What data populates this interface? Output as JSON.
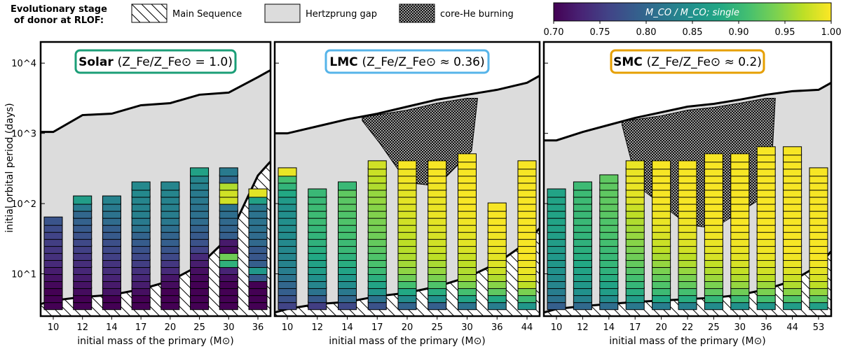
{
  "legend": {
    "title_line1": "Evolutionary stage",
    "title_line2": "of donor at RLOF:",
    "main_sequence": "Main Sequence",
    "hertzsprung_gap": "Hertzprung gap",
    "core_he": "core-He burning"
  },
  "colorbar": {
    "label": "M_CO / M_CO; single",
    "min": 0.7,
    "max": 1.0,
    "ticks": [
      "0.70",
      "0.75",
      "0.80",
      "0.85",
      "0.90",
      "0.95",
      "1.00"
    ],
    "colormap": "viridis"
  },
  "axes": {
    "ylabel": "initial orbital period (days)",
    "xlabel": "initial mass of the primary (M⊙)",
    "yticks": [
      "10^1",
      "10^2",
      "10^3",
      "10^4"
    ],
    "ylim_days": [
      2.5,
      20000
    ]
  },
  "colors": {
    "solar_box": "#1b9e77",
    "lmc_box": "#56b4e9",
    "smc_box": "#e69f00",
    "hertzsprung_gap_fill": "#dcdcdc",
    "main_sequence_hatch": "#000000"
  },
  "chart_data": [
    {
      "type": "scatter",
      "panel": "Solar",
      "title_bold": "Solar",
      "title_rest": "(Z_Fe/Z_Fe⊙ = 1.0)",
      "masses": [
        "10",
        "12",
        "14",
        "17",
        "20",
        "25",
        "30",
        "36"
      ],
      "log_period_grid": {
        "start": 0.55,
        "step": 0.1
      },
      "columns": [
        [
          0.0,
          0.0,
          0.0,
          0.02,
          0.05,
          0.08,
          0.12,
          0.14,
          0.16,
          0.18,
          0.2,
          0.23,
          0.26
        ],
        [
          0.0,
          0.0,
          0.03,
          0.05,
          0.08,
          0.11,
          0.13,
          0.16,
          0.19,
          0.22,
          0.25,
          0.28,
          0.31,
          0.33,
          0.41,
          0.55
        ],
        [
          0.0,
          0.0,
          0.05,
          0.07,
          0.1,
          0.13,
          0.15,
          0.19,
          0.22,
          0.24,
          0.28,
          0.3,
          0.35,
          0.38,
          0.41,
          0.44
        ],
        [
          0.0,
          0.0,
          0.04,
          0.08,
          0.11,
          0.14,
          0.18,
          0.22,
          0.25,
          0.29,
          0.32,
          0.38,
          0.41,
          0.43,
          0.44,
          0.45,
          0.47,
          0.47
        ],
        [
          0.0,
          0.0,
          0.0,
          0.03,
          0.06,
          0.12,
          0.16,
          0.22,
          0.26,
          0.3,
          0.32,
          0.36,
          0.4,
          0.42,
          0.43,
          0.44,
          0.45,
          0.45
        ],
        [
          0.0,
          0.0,
          0.0,
          0.0,
          0.02,
          0.04,
          0.08,
          0.12,
          0.2,
          0.25,
          0.28,
          0.31,
          0.35,
          0.37,
          0.38,
          0.4,
          0.41,
          0.43,
          0.45,
          0.57
        ],
        [
          0.0,
          0.0,
          0.0,
          0.0,
          0.04,
          0.1,
          0.64,
          0.78,
          0.04,
          0.07,
          0.3,
          0.32,
          0.34,
          0.36,
          0.38,
          0.93,
          0.93,
          0.88,
          0.33,
          0.41
        ],
        [
          0.0,
          0.0,
          0.0,
          0.0,
          0.28,
          0.53,
          0.3,
          0.27,
          0.28,
          0.34,
          0.35,
          0.37,
          0.38,
          0.38,
          0.4,
          0.57,
          0.96
        ]
      ],
      "colors_legend": "values are M_CO/M_CO;single - 0.70, scaled by 0.30",
      "main_sequence_boundary_log_period": [
        0.62,
        0.67,
        0.7,
        0.78,
        0.9,
        1.12,
        1.52,
        2.4
      ],
      "top_boundary_log_period": [
        3.02,
        3.26,
        3.28,
        3.4,
        3.43,
        3.55,
        3.58,
        3.8
      ]
    },
    {
      "type": "scatter",
      "panel": "LMC",
      "title_bold": "LMC",
      "title_rest": "(Z_Fe/Z_Fe⊙ ≈ 0.36)",
      "masses": [
        "10",
        "12",
        "14",
        "17",
        "20",
        "25",
        "30",
        "36",
        "44"
      ],
      "log_period_grid": {
        "start": 0.55,
        "step": 0.1
      },
      "columns": [
        [
          0.2,
          0.25,
          0.3,
          0.33,
          0.38,
          0.42,
          0.44,
          0.45,
          0.46,
          0.47,
          0.48,
          0.48,
          0.49,
          0.49,
          0.5,
          0.54,
          0.6,
          0.65,
          0.7,
          0.97
        ],
        [
          0.18,
          0.28,
          0.38,
          0.45,
          0.5,
          0.55,
          0.57,
          0.6,
          0.62,
          0.64,
          0.65,
          0.66,
          0.68,
          0.68,
          0.68,
          0.67,
          0.67
        ],
        [
          0.22,
          0.33,
          0.4,
          0.48,
          0.53,
          0.58,
          0.62,
          0.64,
          0.67,
          0.68,
          0.7,
          0.7,
          0.72,
          0.72,
          0.74,
          0.74,
          0.75,
          0.67
        ],
        [
          0.25,
          0.38,
          0.52,
          0.58,
          0.63,
          0.68,
          0.71,
          0.72,
          0.74,
          0.76,
          0.78,
          0.79,
          0.8,
          0.81,
          0.82,
          0.84,
          0.84,
          0.88,
          0.9,
          0.92,
          0.93
        ],
        [
          0.32,
          0.48,
          0.6,
          0.7,
          0.78,
          0.83,
          0.86,
          0.88,
          0.89,
          0.9,
          0.91,
          0.92,
          0.93,
          0.94,
          0.95,
          0.96,
          0.96,
          0.97,
          0.98,
          0.98,
          0.99
        ],
        [
          0.3,
          0.5,
          0.62,
          0.72,
          0.8,
          0.84,
          0.87,
          0.9,
          0.92,
          0.93,
          0.94,
          0.95,
          0.96,
          0.97,
          0.97,
          0.97,
          0.98,
          0.98,
          0.99,
          0.99,
          0.99
        ],
        [
          0.38,
          0.58,
          0.7,
          0.8,
          0.86,
          0.88,
          0.9,
          0.92,
          0.94,
          0.96,
          0.96,
          0.97,
          0.98,
          0.98,
          0.99,
          0.99,
          0.99,
          0.99,
          0.99,
          0.99,
          0.99,
          0.99
        ],
        [
          0.42,
          0.6,
          0.75,
          0.82,
          0.88,
          0.92,
          0.95,
          0.96,
          0.97,
          0.98,
          0.98,
          0.99,
          0.99,
          0.99,
          0.99
        ],
        [
          0.52,
          0.68,
          0.8,
          0.9,
          0.95,
          0.97,
          0.98,
          0.99,
          0.99,
          0.99,
          0.99,
          0.99,
          0.99,
          0.99,
          0.99,
          0.99,
          0.99,
          0.99,
          0.99,
          0.99,
          0.99
        ]
      ],
      "main_sequence_boundary_log_period": [
        0.5,
        0.57,
        0.6,
        0.68,
        0.73,
        0.82,
        0.95,
        1.15,
        1.45
      ],
      "top_boundary_log_period": [
        3.0,
        3.1,
        3.2,
        3.28,
        3.38,
        3.48,
        3.55,
        3.62,
        3.72
      ]
    },
    {
      "type": "scatter",
      "panel": "SMC",
      "title_bold": "SMC",
      "title_rest": "(Z_Fe/Z_Fe⊙ ≈ 0.2)",
      "masses": [
        "10",
        "12",
        "14",
        "17",
        "20",
        "22",
        "25",
        "30",
        "36",
        "44",
        "53"
      ],
      "log_period_grid": {
        "start": 0.55,
        "step": 0.1
      },
      "columns": [
        [
          0.3,
          0.38,
          0.42,
          0.45,
          0.48,
          0.5,
          0.52,
          0.53,
          0.54,
          0.55,
          0.56,
          0.57,
          0.58,
          0.58,
          0.58,
          0.58,
          0.58
        ],
        [
          0.34,
          0.44,
          0.5,
          0.53,
          0.56,
          0.58,
          0.6,
          0.62,
          0.63,
          0.64,
          0.65,
          0.66,
          0.67,
          0.67,
          0.68,
          0.68,
          0.68,
          0.68
        ],
        [
          0.36,
          0.48,
          0.55,
          0.58,
          0.62,
          0.64,
          0.66,
          0.67,
          0.68,
          0.7,
          0.71,
          0.72,
          0.72,
          0.74,
          0.75,
          0.75,
          0.75,
          0.75,
          0.75
        ],
        [
          0.4,
          0.55,
          0.62,
          0.66,
          0.7,
          0.73,
          0.76,
          0.78,
          0.8,
          0.82,
          0.84,
          0.86,
          0.88,
          0.9,
          0.92,
          0.95,
          0.96,
          0.97,
          0.97,
          0.97,
          0.97
        ],
        [
          0.42,
          0.6,
          0.68,
          0.72,
          0.76,
          0.8,
          0.84,
          0.87,
          0.9,
          0.92,
          0.94,
          0.96,
          0.97,
          0.98,
          0.98,
          0.99,
          0.99,
          0.99,
          0.99,
          0.99,
          0.99
        ],
        [
          0.44,
          0.62,
          0.7,
          0.76,
          0.8,
          0.84,
          0.88,
          0.9,
          0.93,
          0.95,
          0.96,
          0.97,
          0.98,
          0.98,
          0.99,
          0.99,
          0.99,
          0.99,
          0.99,
          0.99,
          0.99
        ],
        [
          0.48,
          0.66,
          0.75,
          0.8,
          0.85,
          0.88,
          0.91,
          0.94,
          0.96,
          0.97,
          0.98,
          0.98,
          0.99,
          0.99,
          0.99,
          0.99,
          0.99,
          0.99,
          0.99,
          0.99,
          0.99,
          0.99
        ],
        [
          0.5,
          0.68,
          0.78,
          0.84,
          0.88,
          0.91,
          0.94,
          0.96,
          0.97,
          0.98,
          0.98,
          0.99,
          0.99,
          0.99,
          0.99,
          0.99,
          0.99,
          0.99,
          0.99,
          0.99,
          0.99,
          0.99
        ],
        [
          0.52,
          0.7,
          0.8,
          0.85,
          0.9,
          0.93,
          0.95,
          0.97,
          0.98,
          0.98,
          0.99,
          0.99,
          0.99,
          0.99,
          0.99,
          0.99,
          0.99,
          0.99,
          0.99,
          0.99,
          0.99,
          0.99,
          0.99
        ],
        [
          0.55,
          0.72,
          0.82,
          0.88,
          0.92,
          0.95,
          0.97,
          0.98,
          0.99,
          0.99,
          0.99,
          0.99,
          0.99,
          0.99,
          0.99,
          0.99,
          0.99,
          0.99,
          0.99,
          0.99,
          0.99,
          0.99,
          0.99
        ],
        [
          0.56,
          0.74,
          0.84,
          0.9,
          0.94,
          0.96,
          0.98,
          0.99,
          0.99,
          0.99,
          0.99,
          0.99,
          0.99,
          0.99,
          0.99,
          0.99,
          0.99,
          0.99,
          0.99,
          0.99
        ]
      ],
      "main_sequence_boundary_log_period": [
        0.5,
        0.54,
        0.57,
        0.6,
        0.62,
        0.64,
        0.66,
        0.7,
        0.78,
        0.9,
        1.12
      ],
      "top_boundary_log_period": [
        2.9,
        3.02,
        3.12,
        3.22,
        3.3,
        3.38,
        3.42,
        3.48,
        3.55,
        3.6,
        3.62
      ]
    }
  ]
}
